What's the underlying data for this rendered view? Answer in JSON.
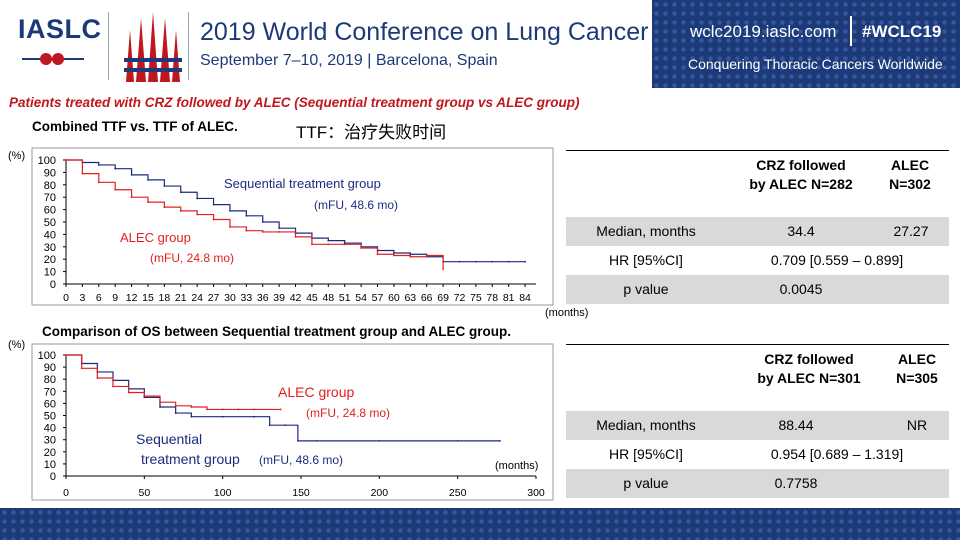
{
  "header": {
    "logo": "IASLC",
    "conference_title": "2019 World Conference on Lung Cancer",
    "dates_location": "September 7–10, 2019 | Barcelona, Spain",
    "website": "wclc2019.iaslc.com",
    "hashtag": "#WCLC19",
    "slogan": "Conquering Thoracic Cancers Worldwide"
  },
  "colors": {
    "brand": "#1d3a78",
    "red_title": "#c0171e",
    "alec": "#e02020",
    "sequential": "#1d2a80",
    "table_grey": "#d9d9d9"
  },
  "subtitle": "Patients treated with CRZ followed by ALEC (Sequential treatment group vs ALEC group)",
  "section1": {
    "title": "Combined TTF vs. TTF of ALEC.",
    "ttf_note": "TTF：治疗失败时间"
  },
  "section2": {
    "title": "Comparison of OS between Sequential treatment group and ALEC group."
  },
  "table1": {
    "col1": [
      "CRZ followed",
      "by ALEC  N=282"
    ],
    "col2": [
      "ALEC",
      "N=302"
    ],
    "rows": [
      {
        "label": "Median, months",
        "v1": "34.4",
        "v2": "27.27"
      },
      {
        "label": "HR [95%CI]",
        "v1": "0.709 [0.559 – 0.899]",
        "v2": ""
      },
      {
        "label": "p value",
        "v1": "0.0045",
        "v2": ""
      }
    ]
  },
  "table2": {
    "col1": [
      "CRZ followed",
      "by ALEC  N=301"
    ],
    "col2": [
      "ALEC",
      "N=305"
    ],
    "rows": [
      {
        "label": "Median, months",
        "v1": "88.44",
        "v2": "NR"
      },
      {
        "label": "HR [95%CI]",
        "v1": "0.954 [0.689 – 1.319]",
        "v2": ""
      },
      {
        "label": "p value",
        "v1": "0.7758",
        "v2": ""
      }
    ]
  },
  "chart_data": [
    {
      "type": "line",
      "title": "Combined TTF vs. TTF of ALEC.",
      "ylabel": "(%)",
      "xlabel": "(months)",
      "xlim": [
        0,
        86
      ],
      "ylim": [
        0,
        100
      ],
      "xticks": [
        0,
        3,
        6,
        9,
        12,
        15,
        18,
        21,
        24,
        27,
        30,
        33,
        36,
        39,
        42,
        45,
        48,
        51,
        54,
        57,
        60,
        63,
        66,
        69,
        72,
        75,
        78,
        81,
        84
      ],
      "yticks": [
        0,
        10,
        20,
        30,
        40,
        50,
        60,
        70,
        80,
        90,
        100
      ],
      "annotations": [
        "Sequential treatment group",
        "(mFU, 48.6 mo)",
        "ALEC group",
        "(mFU, 24.8 mo)"
      ],
      "series": [
        {
          "name": "Sequential treatment group",
          "color": "#1d2a80",
          "x": [
            0,
            3,
            6,
            9,
            12,
            15,
            18,
            21,
            24,
            27,
            30,
            33,
            36,
            39,
            42,
            45,
            48,
            51,
            54,
            57,
            60,
            63,
            66,
            69,
            72,
            75,
            78,
            81,
            84
          ],
          "y": [
            100,
            98,
            96,
            93,
            88,
            84,
            79,
            74,
            69,
            64,
            59,
            55,
            50,
            45,
            41,
            37,
            35,
            33,
            30,
            27,
            25,
            24,
            22,
            18,
            18,
            18,
            18,
            18,
            18
          ]
        },
        {
          "name": "ALEC group",
          "color": "#e02020",
          "x": [
            0,
            3,
            6,
            9,
            12,
            15,
            18,
            21,
            24,
            27,
            30,
            33,
            36,
            39,
            42,
            45,
            48,
            51,
            54,
            57,
            60,
            63,
            66,
            69
          ],
          "y": [
            100,
            89,
            82,
            76,
            70,
            66,
            62,
            59,
            56,
            52,
            46,
            43,
            42,
            42,
            38,
            32,
            32,
            32,
            29,
            24,
            23,
            22,
            23,
            12
          ]
        }
      ]
    },
    {
      "type": "line",
      "title": "Comparison of OS between Sequential treatment group and ALEC group.",
      "ylabel": "(%)",
      "xlabel": "(months)",
      "xlim": [
        0,
        300
      ],
      "ylim": [
        0,
        100
      ],
      "xticks": [
        0,
        50,
        100,
        150,
        200,
        250,
        300
      ],
      "yticks": [
        0,
        10,
        20,
        30,
        40,
        50,
        60,
        70,
        80,
        90,
        100
      ],
      "annotations": [
        "ALEC group",
        "(mFU, 24.8 mo)",
        "Sequential",
        "treatment group",
        "(mFU, 48.6 mo)"
      ],
      "series": [
        {
          "name": "Sequential treatment group",
          "color": "#1d2a80",
          "x": [
            0,
            10,
            20,
            30,
            40,
            50,
            60,
            70,
            80,
            100,
            120,
            130,
            140,
            148,
            160,
            200,
            250,
            277
          ],
          "y": [
            100,
            93,
            86,
            79,
            72,
            65,
            57,
            52,
            49,
            49,
            49,
            42,
            42,
            29,
            29,
            29,
            29,
            29
          ]
        },
        {
          "name": "ALEC group",
          "color": "#e02020",
          "x": [
            0,
            10,
            20,
            30,
            40,
            50,
            60,
            70,
            80,
            90,
            100,
            110,
            120,
            137
          ],
          "y": [
            100,
            89,
            81,
            74,
            69,
            66,
            61,
            58,
            57,
            55,
            55,
            55,
            55,
            55
          ]
        }
      ]
    }
  ]
}
